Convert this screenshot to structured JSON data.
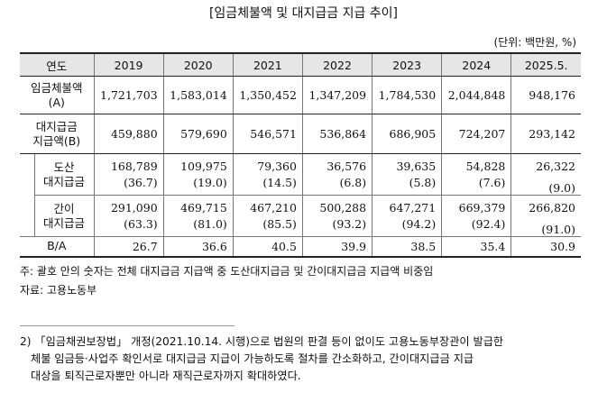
{
  "title": "[임금체불액 및 대지급금 지급 추이]",
  "unit": "(단위: 백만원, %)",
  "table": {
    "header": [
      "연도",
      "2019",
      "2020",
      "2021",
      "2022",
      "2023",
      "2024",
      "2025.5."
    ],
    "rows": {
      "unpaid": {
        "label": [
          "임금체불액",
          "(A)"
        ],
        "values": [
          "1,721,703",
          "1,583,014",
          "1,350,452",
          "1,347,209",
          "1,784,530",
          "2,044,848",
          "948,176"
        ]
      },
      "paid": {
        "label": [
          "대지급금",
          "지급액(B)"
        ],
        "values": [
          "459,880",
          "579,690",
          "546,571",
          "536,864",
          "686,905",
          "724,207",
          "293,142"
        ]
      },
      "bankrupt": {
        "label": [
          "도산",
          "대지급금"
        ],
        "values": [
          "168,789",
          "109,975",
          "79,360",
          "36,576",
          "39,635",
          "54,828",
          "26,322"
        ],
        "ratios": [
          "(36.7)",
          "(19.0)",
          "(14.5)",
          "(6.8)",
          "(5.8)",
          "(7.6)",
          "(9.0)"
        ]
      },
      "simple": {
        "label": [
          "간이",
          "대지급금"
        ],
        "values": [
          "291,090",
          "469,715",
          "467,210",
          "500,288",
          "647,271",
          "669,379",
          "266,820"
        ],
        "ratios": [
          "(63.3)",
          "(81.0)",
          "(85.5)",
          "(93.2)",
          "(94.2)",
          "(92.4)",
          "(91.0)"
        ]
      },
      "ba": {
        "label": "B/A",
        "values": [
          "26.7",
          "36.6",
          "40.5",
          "39.9",
          "38.5",
          "35.4",
          "30.9"
        ]
      }
    }
  },
  "notes": {
    "note": "주: 괄호 안의 숫자는 전체 대지급금 지급액 중 도산대지급금 및 간이대지급금 지급액 비중임",
    "source": "자료: 고용노동부"
  },
  "footnote": [
    "2) 「임금채권보장법」 개정(2021.10.14. 시행)으로 법원의 판결 등이 없이도 고용노동부장관이 발급한",
    "체불 임금등·사업주 확인서로 대지급금 지급이 가능하도록 절차를 간소화하고, 간이대지급금 지급",
    "대상을 퇴직근로자뿐만 아니라 재직근로자까지 확대하였다."
  ]
}
